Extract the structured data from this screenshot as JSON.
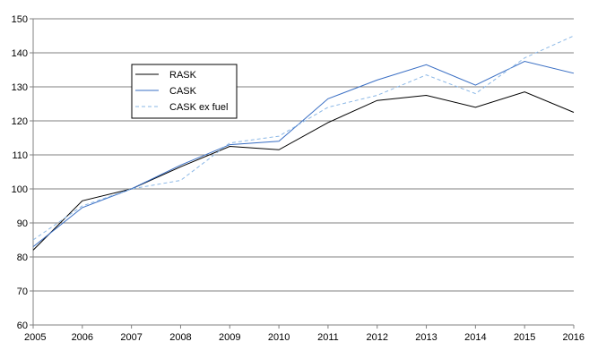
{
  "chart_data": {
    "type": "line",
    "title": "",
    "xlabel": "",
    "ylabel": "",
    "categories": [
      "2005",
      "2006",
      "2007",
      "2008",
      "2009",
      "2010",
      "2011",
      "2012",
      "2013",
      "2014",
      "2015",
      "2016"
    ],
    "ylim": [
      60,
      150
    ],
    "yticks": [
      60,
      70,
      80,
      90,
      100,
      110,
      120,
      130,
      140,
      150
    ],
    "grid": "horizontal",
    "legend_position": "upper-left",
    "series": [
      {
        "name": "RASK",
        "color": "#000000",
        "dash": "solid",
        "values": [
          82,
          96.5,
          100,
          106.5,
          112.5,
          111.5,
          119.5,
          126,
          127.5,
          124,
          128.5,
          122.5
        ]
      },
      {
        "name": "CASK",
        "color": "#3a6fc4",
        "dash": "solid",
        "values": [
          83,
          94.5,
          100,
          107,
          113,
          114,
          126.5,
          132,
          136.5,
          130.5,
          137.5,
          134
        ]
      },
      {
        "name": "CASK ex fuel",
        "color": "#8ab7e6",
        "dash": "dashed",
        "values": [
          85,
          95,
          100,
          102.5,
          113.5,
          115.5,
          124,
          127.5,
          133.5,
          128,
          138.5,
          145
        ]
      }
    ]
  }
}
